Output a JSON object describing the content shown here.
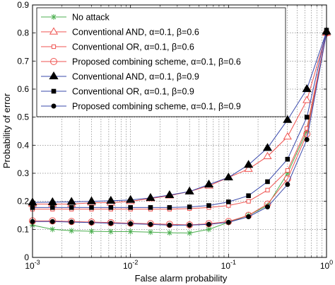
{
  "chart_data": {
    "type": "line",
    "xlabel": "False alarm probability",
    "ylabel": "Probability of error",
    "xscale": "log",
    "xlim": [
      0.001,
      1
    ],
    "ylim": [
      0,
      0.9
    ],
    "grid": true,
    "legend_position": "top-left",
    "xticks": [
      {
        "value": 0.001,
        "base": "10",
        "exp": "-3"
      },
      {
        "value": 0.01,
        "base": "10",
        "exp": "-2"
      },
      {
        "value": 0.1,
        "base": "10",
        "exp": "-1"
      },
      {
        "value": 1,
        "base": "10",
        "exp": "0"
      }
    ],
    "yticks": [
      "0",
      "0.1",
      "0.2",
      "0.3",
      "0.4",
      "0.5",
      "0.6",
      "0.7",
      "0.8",
      "0.9"
    ],
    "x": [
      0.001,
      0.0016,
      0.0025,
      0.004,
      0.0063,
      0.01,
      0.016,
      0.025,
      0.04,
      0.063,
      0.1,
      0.16,
      0.25,
      0.4,
      0.63,
      1.0
    ],
    "series": [
      {
        "name": "No attack",
        "color": "#4caf50",
        "marker": "star",
        "values": [
          0.115,
          0.1,
          0.095,
          0.093,
          0.092,
          0.092,
          0.09,
          0.088,
          0.087,
          0.1,
          0.125,
          0.15,
          0.185,
          0.3,
          0.45,
          0.8
        ]
      },
      {
        "name": "Conventional AND, α=0.1, β=0.6",
        "color": "#ef5350",
        "marker": "triangle-open",
        "values": [
          0.19,
          0.19,
          0.19,
          0.195,
          0.195,
          0.2,
          0.21,
          0.22,
          0.235,
          0.255,
          0.285,
          0.315,
          0.36,
          0.43,
          0.56,
          0.8
        ]
      },
      {
        "name": "Conventional OR, α=0.1, β=0.6",
        "color": "#ef5350",
        "marker": "square-open",
        "values": [
          0.172,
          0.172,
          0.172,
          0.172,
          0.172,
          0.172,
          0.172,
          0.172,
          0.174,
          0.178,
          0.185,
          0.2,
          0.24,
          0.31,
          0.46,
          0.8
        ]
      },
      {
        "name": "Proposed combining scheme, α=0.1, β=0.6",
        "color": "#ef5350",
        "marker": "circle-open",
        "values": [
          0.13,
          0.13,
          0.128,
          0.126,
          0.124,
          0.122,
          0.12,
          0.118,
          0.116,
          0.12,
          0.128,
          0.15,
          0.19,
          0.28,
          0.44,
          0.8
        ]
      },
      {
        "name": "Conventional AND, α=0.1, β=0.9",
        "color": "#000000",
        "marker": "triangle-filled",
        "line_color": "#3949ab",
        "values": [
          0.196,
          0.197,
          0.198,
          0.2,
          0.202,
          0.205,
          0.212,
          0.222,
          0.235,
          0.26,
          0.285,
          0.33,
          0.39,
          0.49,
          0.6,
          0.805
        ]
      },
      {
        "name": "Conventional OR, α=0.1, β=0.9",
        "color": "#000000",
        "marker": "square-filled",
        "line_color": "#3949ab",
        "values": [
          0.178,
          0.178,
          0.178,
          0.178,
          0.178,
          0.178,
          0.178,
          0.178,
          0.18,
          0.185,
          0.198,
          0.22,
          0.27,
          0.35,
          0.5,
          0.81
        ]
      },
      {
        "name": "Proposed combining scheme, α=0.1, β=0.9",
        "color": "#000000",
        "marker": "circle-filled",
        "line_color": "#3949ab",
        "values": [
          0.128,
          0.128,
          0.126,
          0.124,
          0.122,
          0.12,
          0.118,
          0.115,
          0.115,
          0.118,
          0.125,
          0.145,
          0.18,
          0.26,
          0.42,
          0.8
        ]
      }
    ]
  }
}
